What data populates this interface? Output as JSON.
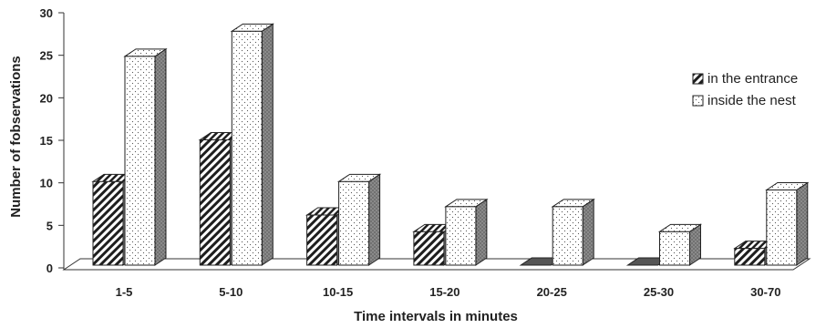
{
  "chart_data": {
    "type": "bar",
    "title": "",
    "xlabel": "Time intervals in minutes",
    "ylabel": "Number of fobservations",
    "ylim": [
      0,
      30
    ],
    "yticks": [
      0,
      5,
      10,
      15,
      20,
      25,
      30
    ],
    "categories": [
      "1-5",
      "5-10",
      "10-15",
      "15-20",
      "20-25",
      "25-30",
      "30-70"
    ],
    "series": [
      {
        "name": "in the entrance",
        "values": [
          10,
          15,
          6,
          4,
          0,
          0,
          2
        ]
      },
      {
        "name": "inside the nest",
        "values": [
          25,
          28,
          10,
          7,
          7,
          4,
          9
        ]
      }
    ],
    "legend_position": "right",
    "grid": false,
    "style": "3d-clustered-column"
  }
}
